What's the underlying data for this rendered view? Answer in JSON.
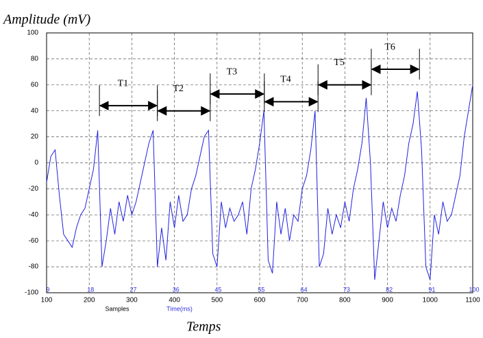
{
  "chart_data": {
    "type": "line",
    "title": "Amplitude (mV)",
    "x_label": "Temps",
    "x_axis_name": "Samples",
    "x2_axis_name": "Time(ms)",
    "x": [
      100,
      110,
      120,
      130,
      140,
      150,
      160,
      170,
      180,
      190,
      200,
      210,
      220,
      230,
      240,
      250,
      260,
      270,
      280,
      290,
      300,
      310,
      320,
      330,
      340,
      350,
      360,
      370,
      380,
      390,
      400,
      410,
      420,
      430,
      440,
      450,
      460,
      470,
      480,
      490,
      500,
      510,
      520,
      530,
      540,
      550,
      560,
      570,
      580,
      590,
      600,
      610,
      620,
      630,
      640,
      650,
      660,
      670,
      680,
      690,
      700,
      710,
      720,
      730,
      740,
      750,
      760,
      770,
      780,
      790,
      800,
      810,
      820,
      830,
      840,
      850,
      860,
      870,
      880,
      890,
      900,
      910,
      920,
      930,
      940,
      950,
      960,
      970,
      980,
      990,
      1000,
      1010,
      1020,
      1030,
      1040,
      1050,
      1060,
      1070,
      1080,
      1090,
      1100
    ],
    "series": [
      {
        "color": "#2020e0",
        "values": [
          -15,
          5,
          10,
          -25,
          -55,
          -60,
          -65,
          -50,
          -40,
          -35,
          -20,
          -5,
          25,
          -80,
          -60,
          -35,
          -55,
          -30,
          -45,
          -25,
          -40,
          -30,
          -15,
          0,
          15,
          25,
          -80,
          -50,
          -75,
          -30,
          -50,
          -25,
          -45,
          -40,
          -20,
          -10,
          5,
          20,
          25,
          -70,
          -80,
          -30,
          -50,
          -35,
          -45,
          -40,
          -30,
          -55,
          -20,
          -5,
          15,
          40,
          -75,
          -85,
          -30,
          -55,
          -35,
          -60,
          -40,
          -45,
          -20,
          -10,
          10,
          40,
          -80,
          -70,
          -35,
          -55,
          -40,
          -50,
          -30,
          -45,
          -20,
          -5,
          15,
          50,
          0,
          -90,
          -60,
          -30,
          -50,
          -35,
          -45,
          -25,
          -10,
          15,
          30,
          55,
          10,
          -80,
          -90,
          -40,
          -55,
          -30,
          -45,
          -40,
          -25,
          -10,
          20,
          40,
          60
        ]
      }
    ],
    "xlim": [
      100,
      1100
    ],
    "xticks": [
      100,
      200,
      300,
      400,
      500,
      600,
      700,
      800,
      900,
      1000,
      1100
    ],
    "x2lim": [
      9.1,
      100
    ],
    "x2ticks": [
      {
        "value": 9.1,
        "label": "9"
      },
      {
        "value": 18.2,
        "label": "18"
      },
      {
        "value": 27.3,
        "label": "27"
      },
      {
        "value": 36.4,
        "label": "36"
      },
      {
        "value": 45.4,
        "label": "45"
      },
      {
        "value": 54.6,
        "label": "55"
      },
      {
        "value": 63.7,
        "label": "64"
      },
      {
        "value": 72.8,
        "label": "73"
      },
      {
        "value": 81.9,
        "label": "82"
      },
      {
        "value": 91,
        "label": "91"
      },
      {
        "value": 100,
        "label": "100"
      }
    ],
    "ylim": [
      -100,
      100
    ],
    "yticks": [
      -100,
      -80,
      -60,
      -40,
      -20,
      0,
      20,
      40,
      60,
      80,
      100
    ],
    "grid": true,
    "annotations": [
      {
        "label": "T1",
        "x1": 224,
        "x2": 360,
        "y": 44
      },
      {
        "label": "T2",
        "x1": 360,
        "x2": 484,
        "y": 40
      },
      {
        "label": "T3",
        "x1": 484,
        "x2": 611,
        "y": 53
      },
      {
        "label": "T4",
        "x1": 611,
        "x2": 737,
        "y": 47
      },
      {
        "label": "T5",
        "x1": 737,
        "x2": 862,
        "y": 60
      },
      {
        "label": "T6",
        "x1": 862,
        "x2": 975,
        "y": 72
      }
    ]
  }
}
